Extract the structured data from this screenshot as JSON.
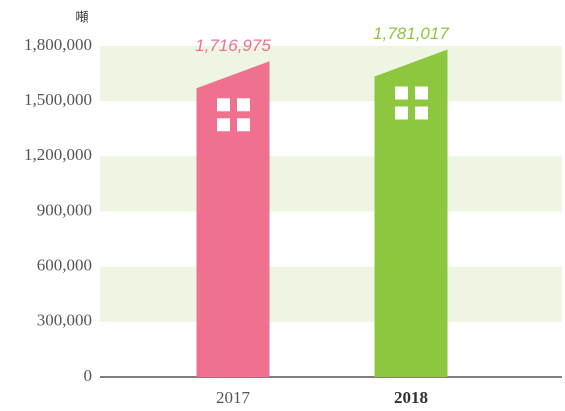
{
  "chart_data": {
    "type": "bar",
    "unit": "噸",
    "categories": [
      "2017",
      "2018"
    ],
    "values": [
      1716975,
      1781017
    ],
    "value_labels": [
      "1,716,975",
      "1,781,017"
    ],
    "colors": [
      "#f07090",
      "#8dc63f"
    ],
    "ylim": [
      0,
      1800000
    ],
    "yticks": [
      0,
      {
        "value": 300000,
        "label": "300,000"
      },
      {
        "value": 600000,
        "label": "600,000"
      },
      {
        "value": 900000,
        "label": "900,000"
      },
      {
        "value": 1200000,
        "label": "1,200,000"
      },
      {
        "value": 1500000,
        "label": "1,500,000"
      },
      {
        "value": 1800000,
        "label": "1,800,000"
      }
    ],
    "grid": true
  }
}
